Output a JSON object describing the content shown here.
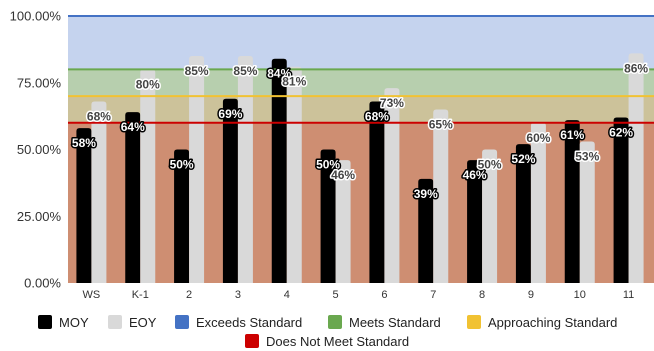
{
  "chart_data": {
    "type": "bar",
    "categories": [
      "WS",
      "K-1",
      "2",
      "3",
      "4",
      "5",
      "6",
      "7",
      "8",
      "9",
      "10",
      "11"
    ],
    "series": [
      {
        "name": "MOY",
        "color": "#000000",
        "values": [
          58,
          64,
          50,
          69,
          84,
          50,
          68,
          39,
          46,
          52,
          61,
          62
        ],
        "labels": [
          "58%",
          "64%",
          "50%",
          "69%",
          "84%",
          "50%",
          "68%",
          "39%",
          "46%",
          "52%",
          "61%",
          "62%"
        ]
      },
      {
        "name": "EOY",
        "color": "#d9d9d9",
        "values": [
          68,
          80,
          85,
          85,
          81,
          46,
          73,
          65,
          50,
          60,
          53,
          86
        ],
        "labels": [
          "68%",
          "80%",
          "85%",
          "85%",
          "81%",
          "46%",
          "73%",
          "65%",
          "50%",
          "60%",
          "53%",
          "86%"
        ]
      }
    ],
    "ylim": [
      0,
      100
    ],
    "yticks": [
      0,
      25,
      50,
      75,
      100
    ],
    "ytick_labels": [
      "0.00%",
      "25.00%",
      "50.00%",
      "75.00%",
      "100.00%"
    ],
    "reference_bands": [
      {
        "name": "Exceeds Standard",
        "color": "#4472c4",
        "line_value": 100,
        "fill": "#c5d3ee",
        "from": 80,
        "to": 100
      },
      {
        "name": "Meets Standard",
        "color": "#6aa84f",
        "line_value": 80,
        "fill": "#b7cfae",
        "from": 70,
        "to": 80
      },
      {
        "name": "Approaching Standard",
        "color": "#f1c232",
        "line_value": 70,
        "fill": "#ccc29a",
        "from": 60,
        "to": 70
      },
      {
        "name": "Does Not Meet Standard",
        "color": "#cc0000",
        "line_value": 60,
        "fill": "#ce8e72",
        "from": 0,
        "to": 60
      }
    ],
    "legend_position": "bottom",
    "grid": false
  }
}
